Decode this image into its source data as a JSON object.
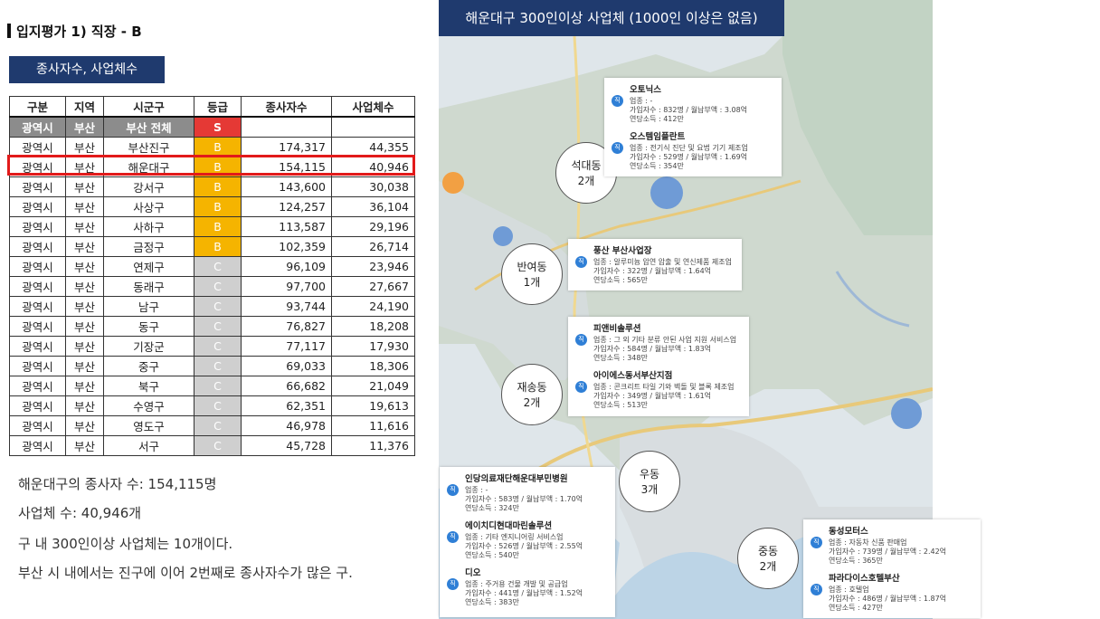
{
  "title": "입지평가 1) 직장 - B",
  "subtitle": "종사자수, 사업체수",
  "table": {
    "headers": [
      "구분",
      "지역",
      "시군구",
      "등급",
      "종사자수",
      "사업체수"
    ],
    "total": {
      "type": "광역시",
      "region": "부산",
      "district": "부산 전체",
      "grade": "S"
    },
    "rows": [
      {
        "type": "광역시",
        "region": "부산",
        "district": "부산진구",
        "grade": "B",
        "workers": "174,317",
        "biz": "44,355"
      },
      {
        "type": "광역시",
        "region": "부산",
        "district": "해운대구",
        "grade": "B",
        "workers": "154,115",
        "biz": "40,946"
      },
      {
        "type": "광역시",
        "region": "부산",
        "district": "강서구",
        "grade": "B",
        "workers": "143,600",
        "biz": "30,038"
      },
      {
        "type": "광역시",
        "region": "부산",
        "district": "사상구",
        "grade": "B",
        "workers": "124,257",
        "biz": "36,104"
      },
      {
        "type": "광역시",
        "region": "부산",
        "district": "사하구",
        "grade": "B",
        "workers": "113,587",
        "biz": "29,196"
      },
      {
        "type": "광역시",
        "region": "부산",
        "district": "금정구",
        "grade": "B",
        "workers": "102,359",
        "biz": "26,714"
      },
      {
        "type": "광역시",
        "region": "부산",
        "district": "연제구",
        "grade": "C",
        "workers": "96,109",
        "biz": "23,946"
      },
      {
        "type": "광역시",
        "region": "부산",
        "district": "동래구",
        "grade": "C",
        "workers": "97,700",
        "biz": "27,667"
      },
      {
        "type": "광역시",
        "region": "부산",
        "district": "남구",
        "grade": "C",
        "workers": "93,744",
        "biz": "24,190"
      },
      {
        "type": "광역시",
        "region": "부산",
        "district": "동구",
        "grade": "C",
        "workers": "76,827",
        "biz": "18,208"
      },
      {
        "type": "광역시",
        "region": "부산",
        "district": "기장군",
        "grade": "C",
        "workers": "77,117",
        "biz": "17,930"
      },
      {
        "type": "광역시",
        "region": "부산",
        "district": "중구",
        "grade": "C",
        "workers": "69,033",
        "biz": "18,306"
      },
      {
        "type": "광역시",
        "region": "부산",
        "district": "북구",
        "grade": "C",
        "workers": "66,682",
        "biz": "21,049"
      },
      {
        "type": "광역시",
        "region": "부산",
        "district": "수영구",
        "grade": "C",
        "workers": "62,351",
        "biz": "19,613"
      },
      {
        "type": "광역시",
        "region": "부산",
        "district": "영도구",
        "grade": "C",
        "workers": "46,978",
        "biz": "11,616"
      },
      {
        "type": "광역시",
        "region": "부산",
        "district": "서구",
        "grade": "C",
        "workers": "45,728",
        "biz": "11,376"
      }
    ]
  },
  "summary": [
    "해운대구의 종사자 수: 154,115명",
    "사업체 수: 40,946개",
    "구 내 300인이상 사업체는 10개이다.",
    "부산 시 내에서는 진구에 이어 2번째로 종사자수가 많은 구."
  ],
  "map": {
    "header": "해운대구 300인이상 사업체 (1000인 이상은 없음)",
    "icon_label": "직",
    "dongs": [
      {
        "name": "석대동",
        "count": "2개"
      },
      {
        "name": "반여동",
        "count": "1개"
      },
      {
        "name": "재송동",
        "count": "2개"
      },
      {
        "name": "우동",
        "count": "3개"
      },
      {
        "name": "중동",
        "count": "2개"
      }
    ],
    "cards": [
      {
        "entries": [
          {
            "name": "오토닉스",
            "l1": "업종 : -",
            "l2": "가입자수 : 832명 / 월납부액 : 3.08억",
            "l3": "연당소득 : 412만"
          },
          {
            "name": "오스템임플란트",
            "l1": "업종 : 전기식 진단 및 요법 기기 제조업",
            "l2": "가입자수 : 529명 / 월납부액 : 1.69억",
            "l3": "연당소득 : 354만"
          }
        ]
      },
      {
        "entries": [
          {
            "name": "풍산 부산사업장",
            "l1": "업종 : 알루미늄 압연 압출 및 연신제품 제조업",
            "l2": "가입자수 : 322명 / 월납부액 : 1.64억",
            "l3": "연당소득 : 565만"
          }
        ]
      },
      {
        "entries": [
          {
            "name": "피앤비솔루션",
            "l1": "업종 : 그 외 기타 분류 안된 사업 지원 서비스업",
            "l2": "가입자수 : 584명 / 월납부액 : 1.83억",
            "l3": "연당소득 : 348만"
          },
          {
            "name": "아이에스동서부산지점",
            "l1": "업종 : 콘크리트 타일 기와 벽돌 및 블록 제조업",
            "l2": "가입자수 : 349명 / 월납부액 : 1.61억",
            "l3": "연당소득 : 513만"
          }
        ]
      },
      {
        "entries": [
          {
            "name": "인당의료재단해운대부민병원",
            "l1": "업종 : -",
            "l2": "가입자수 : 583명 / 월납부액 : 1.70억",
            "l3": "연당소득 : 324만"
          },
          {
            "name": "에이치디현대마린솔루션",
            "l1": "업종 : 기타 엔지니어링 서비스업",
            "l2": "가입자수 : 526명 / 월납부액 : 2.55억",
            "l3": "연당소득 : 540만"
          },
          {
            "name": "디오",
            "l1": "업종 : 주거용 건물 개발 및 공급업",
            "l2": "가입자수 : 441명 / 월납부액 : 1.52억",
            "l3": "연당소득 : 383만"
          }
        ]
      },
      {
        "entries": [
          {
            "name": "동성모터스",
            "l1": "업종 : 자동차 신품 판매업",
            "l2": "가입자수 : 739명 / 월납부액 : 2.42억",
            "l3": "연당소득 : 365만"
          },
          {
            "name": "파라다이스호텔부산",
            "l1": "업종 : 호텔업",
            "l2": "가입자수 : 486명 / 월납부액 : 1.87억",
            "l3": "연당소득 : 427만"
          }
        ]
      }
    ]
  },
  "colors": {
    "navy": "#1f3a6e",
    "grade_S": "#e53935",
    "grade_B": "#f5b400",
    "grade_C": "#cfcfcf",
    "highlight": "#e21a1a",
    "icon": "#2f7fd6"
  }
}
